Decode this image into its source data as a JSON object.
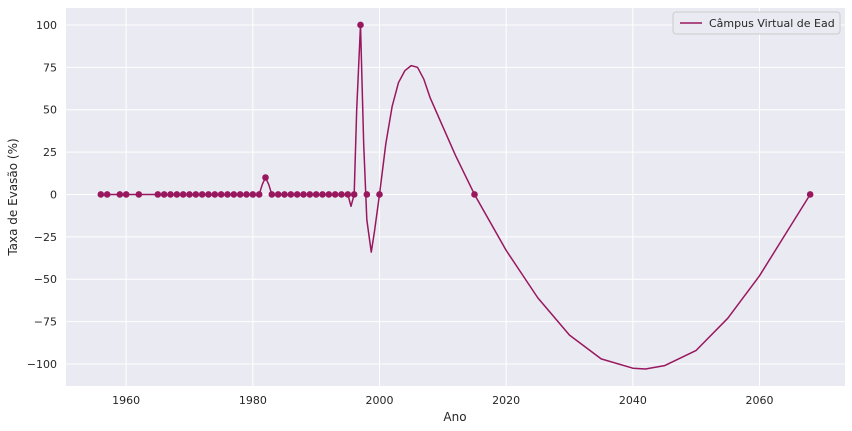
{
  "chart_data": {
    "type": "line",
    "title": "",
    "xlabel": "Ano",
    "ylabel": "Taxa de Evasão (%)",
    "xlim": [
      1950.5,
      2073.5
    ],
    "ylim": [
      -113,
      110
    ],
    "xticks": [
      1960,
      1980,
      2000,
      2020,
      2040,
      2060
    ],
    "xtick_labels": [
      "1960",
      "1980",
      "2000",
      "2020",
      "2040",
      "2060"
    ],
    "yticks": [
      -100,
      -75,
      -50,
      -25,
      0,
      25,
      50,
      75,
      100
    ],
    "ytick_labels": [
      "−100",
      "−75",
      "−50",
      "−25",
      "0",
      "25",
      "50",
      "75",
      "100"
    ],
    "grid": true,
    "legend": {
      "position": "top-right"
    },
    "colors": {
      "series": "#98175e",
      "background": "#eaeaf2",
      "grid": "#ffffff"
    },
    "series": [
      {
        "name": "Câmpus Virtual de Ead",
        "points": [
          [
            1956,
            0
          ],
          [
            1957,
            0
          ],
          [
            1959,
            0
          ],
          [
            1960,
            0
          ],
          [
            1962,
            0
          ],
          [
            1965,
            0
          ],
          [
            1966,
            0
          ],
          [
            1967,
            0
          ],
          [
            1968,
            0
          ],
          [
            1969,
            0
          ],
          [
            1970,
            0
          ],
          [
            1971,
            0
          ],
          [
            1972,
            0
          ],
          [
            1973,
            0
          ],
          [
            1974,
            0
          ],
          [
            1975,
            0
          ],
          [
            1976,
            0
          ],
          [
            1977,
            0
          ],
          [
            1978,
            0
          ],
          [
            1979,
            0
          ],
          [
            1980,
            0
          ],
          [
            1981,
            0
          ],
          [
            1982,
            10
          ],
          [
            1983,
            0
          ],
          [
            1984,
            0
          ],
          [
            1985,
            0
          ],
          [
            1986,
            0
          ],
          [
            1987,
            0
          ],
          [
            1988,
            0
          ],
          [
            1989,
            0
          ],
          [
            1990,
            0
          ],
          [
            1991,
            0
          ],
          [
            1992,
            0
          ],
          [
            1993,
            0
          ],
          [
            1994,
            0
          ],
          [
            1995,
            0
          ],
          [
            1996,
            0
          ],
          [
            1997,
            100
          ],
          [
            1998,
            0
          ],
          [
            2000,
            0
          ],
          [
            2015,
            0
          ],
          [
            2068,
            0
          ]
        ],
        "curve": [
          [
            1956,
            0
          ],
          [
            1957,
            0
          ],
          [
            1959,
            0
          ],
          [
            1960,
            0
          ],
          [
            1962,
            0
          ],
          [
            1965,
            0
          ],
          [
            1980,
            0
          ],
          [
            1981,
            0
          ],
          [
            1981.5,
            6
          ],
          [
            1982,
            10
          ],
          [
            1982.5,
            6
          ],
          [
            1983,
            0
          ],
          [
            1994,
            0
          ],
          [
            1995,
            0
          ],
          [
            1995.5,
            -7
          ],
          [
            1996,
            0
          ],
          [
            1996.4,
            50
          ],
          [
            1997,
            100
          ],
          [
            1997.5,
            30
          ],
          [
            1998,
            -15
          ],
          [
            1998.7,
            -34
          ],
          [
            1999.2,
            -22
          ],
          [
            2000,
            0
          ],
          [
            2001,
            30
          ],
          [
            2002,
            52
          ],
          [
            2003,
            66
          ],
          [
            2004,
            73
          ],
          [
            2005,
            76
          ],
          [
            2006,
            75
          ],
          [
            2007,
            68
          ],
          [
            2008,
            57
          ],
          [
            2010,
            40
          ],
          [
            2012,
            23
          ],
          [
            2015,
            0
          ],
          [
            2020,
            -33
          ],
          [
            2025,
            -61
          ],
          [
            2030,
            -83
          ],
          [
            2035,
            -97
          ],
          [
            2040,
            -102.5
          ],
          [
            2042,
            -103
          ],
          [
            2045,
            -101
          ],
          [
            2050,
            -92
          ],
          [
            2055,
            -73
          ],
          [
            2060,
            -48
          ],
          [
            2064,
            -24
          ],
          [
            2068,
            0
          ]
        ]
      }
    ]
  }
}
